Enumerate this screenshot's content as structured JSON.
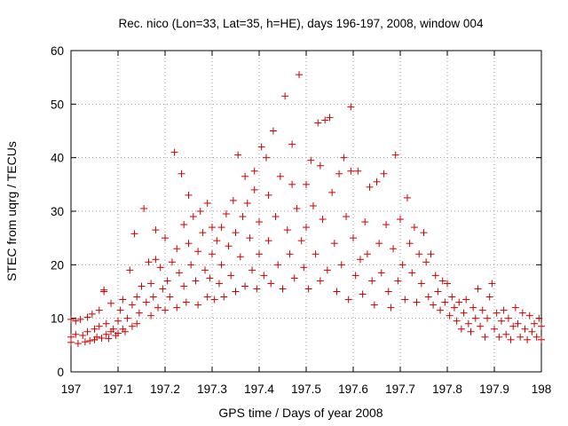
{
  "chart_data": {
    "type": "scatter",
    "title": "Rec. nico (Lon=33, Lat=35, h=HE), days 196-197, 2008, window 004",
    "xlabel": "GPS time / Days of year 2008",
    "ylabel": "STEC from uqrg / TECUs",
    "xlim": [
      197,
      198
    ],
    "ylim": [
      0,
      60
    ],
    "x_ticks": [
      "197",
      "197.1",
      "197.2",
      "197.3",
      "197.4",
      "197.5",
      "197.6",
      "197.7",
      "197.8",
      "197.9",
      "198"
    ],
    "y_ticks": [
      "0",
      "10",
      "20",
      "30",
      "40",
      "50",
      "60"
    ],
    "grid": true,
    "legend": "none",
    "marker": "plus",
    "color": "#cc0000",
    "series": [
      {
        "points": [
          [
            197.0,
            9.8
          ],
          [
            197.0,
            6.5
          ],
          [
            197.0,
            5.5
          ],
          [
            197.01,
            9.5
          ],
          [
            197.01,
            7.0
          ],
          [
            197.015,
            5.3
          ],
          [
            197.02,
            9.8
          ],
          [
            197.025,
            6.8
          ],
          [
            197.03,
            5.6
          ],
          [
            197.035,
            10.2
          ],
          [
            197.035,
            7.5
          ],
          [
            197.04,
            5.8
          ],
          [
            197.045,
            10.8
          ],
          [
            197.05,
            8.0
          ],
          [
            197.05,
            6.0
          ],
          [
            197.055,
            6.5
          ],
          [
            197.06,
            11.5
          ],
          [
            197.06,
            8.5
          ],
          [
            197.065,
            6.3
          ],
          [
            197.07,
            15.3
          ],
          [
            197.07,
            15.0
          ],
          [
            197.075,
            7.0
          ],
          [
            197.075,
            9.0
          ],
          [
            197.08,
            6.2
          ],
          [
            197.085,
            12.8
          ],
          [
            197.085,
            7.5
          ],
          [
            197.09,
            8.0
          ],
          [
            197.095,
            6.8
          ],
          [
            197.1,
            9.5
          ],
          [
            197.1,
            7.2
          ],
          [
            197.105,
            11.5
          ],
          [
            197.11,
            13.5
          ],
          [
            197.11,
            8.0
          ],
          [
            197.115,
            7.5
          ],
          [
            197.12,
            10.0
          ],
          [
            197.125,
            19.0
          ],
          [
            197.13,
            12.5
          ],
          [
            197.13,
            8.5
          ],
          [
            197.135,
            25.8
          ],
          [
            197.14,
            14.0
          ],
          [
            197.14,
            9.0
          ],
          [
            197.145,
            11.0
          ],
          [
            197.15,
            16.0
          ],
          [
            197.155,
            30.5
          ],
          [
            197.16,
            13.0
          ],
          [
            197.165,
            20.5
          ],
          [
            197.17,
            16.5
          ],
          [
            197.17,
            10.5
          ],
          [
            197.175,
            14.0
          ],
          [
            197.18,
            26.5
          ],
          [
            197.18,
            21.0
          ],
          [
            197.185,
            12.0
          ],
          [
            197.19,
            19.5
          ],
          [
            197.195,
            15.5
          ],
          [
            197.2,
            25.0
          ],
          [
            197.2,
            11.5
          ],
          [
            197.205,
            17.0
          ],
          [
            197.21,
            14.0
          ],
          [
            197.215,
            20.5
          ],
          [
            197.22,
            41.0
          ],
          [
            197.225,
            23.0
          ],
          [
            197.225,
            12.0
          ],
          [
            197.23,
            18.5
          ],
          [
            197.235,
            37.0
          ],
          [
            197.24,
            27.5
          ],
          [
            197.24,
            16.0
          ],
          [
            197.245,
            13.0
          ],
          [
            197.25,
            33.0
          ],
          [
            197.25,
            24.0
          ],
          [
            197.255,
            20.0
          ],
          [
            197.26,
            29.0
          ],
          [
            197.265,
            17.0
          ],
          [
            197.27,
            22.5
          ],
          [
            197.27,
            12.5
          ],
          [
            197.275,
            30.0
          ],
          [
            197.28,
            26.0
          ],
          [
            197.285,
            19.0
          ],
          [
            197.29,
            31.5
          ],
          [
            197.29,
            14.0
          ],
          [
            197.295,
            17.5
          ],
          [
            197.3,
            27.0
          ],
          [
            197.3,
            22.0
          ],
          [
            197.305,
            13.5
          ],
          [
            197.31,
            24.5
          ],
          [
            197.315,
            16.5
          ],
          [
            197.32,
            27.0
          ],
          [
            197.32,
            20.0
          ],
          [
            197.325,
            14.0
          ],
          [
            197.33,
            29.5
          ],
          [
            197.335,
            23.5
          ],
          [
            197.34,
            18.0
          ],
          [
            197.345,
            32.0
          ],
          [
            197.35,
            26.0
          ],
          [
            197.35,
            15.0
          ],
          [
            197.355,
            40.5
          ],
          [
            197.36,
            21.5
          ],
          [
            197.365,
            29.0
          ],
          [
            197.37,
            36.5
          ],
          [
            197.37,
            16.0
          ],
          [
            197.375,
            31.5
          ],
          [
            197.38,
            25.0
          ],
          [
            197.385,
            19.0
          ],
          [
            197.39,
            37.5
          ],
          [
            197.39,
            34.0
          ],
          [
            197.395,
            15.5
          ],
          [
            197.4,
            28.0
          ],
          [
            197.4,
            22.0
          ],
          [
            197.405,
            42.0
          ],
          [
            197.41,
            18.0
          ],
          [
            197.415,
            40.0
          ],
          [
            197.42,
            33.0
          ],
          [
            197.42,
            24.5
          ],
          [
            197.425,
            16.5
          ],
          [
            197.43,
            45.0
          ],
          [
            197.435,
            29.0
          ],
          [
            197.44,
            20.0
          ],
          [
            197.445,
            36.5
          ],
          [
            197.45,
            15.5
          ],
          [
            197.455,
            51.5
          ],
          [
            197.46,
            26.5
          ],
          [
            197.465,
            22.0
          ],
          [
            197.47,
            42.5
          ],
          [
            197.47,
            35.0
          ],
          [
            197.475,
            17.5
          ],
          [
            197.48,
            30.5
          ],
          [
            197.485,
            55.5
          ],
          [
            197.49,
            24.5
          ],
          [
            197.495,
            19.5
          ],
          [
            197.5,
            35.0
          ],
          [
            197.5,
            27.0
          ],
          [
            197.505,
            15.5
          ],
          [
            197.51,
            39.5
          ],
          [
            197.515,
            31.0
          ],
          [
            197.52,
            22.0
          ],
          [
            197.525,
            46.5
          ],
          [
            197.53,
            38.5
          ],
          [
            197.53,
            17.0
          ],
          [
            197.535,
            28.5
          ],
          [
            197.54,
            47.0
          ],
          [
            197.545,
            19.0
          ],
          [
            197.55,
            47.5
          ],
          [
            197.555,
            33.5
          ],
          [
            197.56,
            24.0
          ],
          [
            197.565,
            15.0
          ],
          [
            197.57,
            37.0
          ],
          [
            197.575,
            20.0
          ],
          [
            197.58,
            40.0
          ],
          [
            197.585,
            29.0
          ],
          [
            197.59,
            13.5
          ],
          [
            197.595,
            49.5
          ],
          [
            197.595,
            37.5
          ],
          [
            197.6,
            25.0
          ],
          [
            197.605,
            18.0
          ],
          [
            197.61,
            37.5
          ],
          [
            197.615,
            21.0
          ],
          [
            197.62,
            14.5
          ],
          [
            197.625,
            28.0
          ],
          [
            197.63,
            22.0
          ],
          [
            197.635,
            34.5
          ],
          [
            197.64,
            17.0
          ],
          [
            197.645,
            12.5
          ],
          [
            197.65,
            35.5
          ],
          [
            197.655,
            24.0
          ],
          [
            197.66,
            18.5
          ],
          [
            197.665,
            37.0
          ],
          [
            197.67,
            27.5
          ],
          [
            197.675,
            15.0
          ],
          [
            197.68,
            12.0
          ],
          [
            197.685,
            23.0
          ],
          [
            197.69,
            40.5
          ],
          [
            197.695,
            17.0
          ],
          [
            197.7,
            28.5
          ],
          [
            197.705,
            20.0
          ],
          [
            197.71,
            13.5
          ],
          [
            197.715,
            32.5
          ],
          [
            197.72,
            24.0
          ],
          [
            197.725,
            18.5
          ],
          [
            197.73,
            27.0
          ],
          [
            197.735,
            13.0
          ],
          [
            197.74,
            22.0
          ],
          [
            197.745,
            16.5
          ],
          [
            197.75,
            26.0
          ],
          [
            197.755,
            20.5
          ],
          [
            197.76,
            14.0
          ],
          [
            197.765,
            22.0
          ],
          [
            197.77,
            12.5
          ],
          [
            197.775,
            18.0
          ],
          [
            197.78,
            15.0
          ],
          [
            197.785,
            11.5
          ],
          [
            197.79,
            17.0
          ],
          [
            197.795,
            13.0
          ],
          [
            197.8,
            16.5
          ],
          [
            197.805,
            10.5
          ],
          [
            197.81,
            14.0
          ],
          [
            197.815,
            12.0
          ],
          [
            197.82,
            9.5
          ],
          [
            197.825,
            13.0
          ],
          [
            197.83,
            8.0
          ],
          [
            197.835,
            11.0
          ],
          [
            197.84,
            13.5
          ],
          [
            197.845,
            9.0
          ],
          [
            197.85,
            7.5
          ],
          [
            197.855,
            12.0
          ],
          [
            197.86,
            10.0
          ],
          [
            197.865,
            15.5
          ],
          [
            197.87,
            8.5
          ],
          [
            197.875,
            11.5
          ],
          [
            197.88,
            6.5
          ],
          [
            197.885,
            10.0
          ],
          [
            197.89,
            14.0
          ],
          [
            197.895,
            16.5
          ],
          [
            197.9,
            8.0
          ],
          [
            197.905,
            11.0
          ],
          [
            197.91,
            6.5
          ],
          [
            197.915,
            9.5
          ],
          [
            197.92,
            11.5
          ],
          [
            197.925,
            7.0
          ],
          [
            197.93,
            10.0
          ],
          [
            197.935,
            6.0
          ],
          [
            197.94,
            8.5
          ],
          [
            197.945,
            12.0
          ],
          [
            197.95,
            9.0
          ],
          [
            197.955,
            6.5
          ],
          [
            197.96,
            11.0
          ],
          [
            197.965,
            8.0
          ],
          [
            197.97,
            6.0
          ],
          [
            197.975,
            10.5
          ],
          [
            197.98,
            7.5
          ],
          [
            197.985,
            9.0
          ],
          [
            197.99,
            6.5
          ],
          [
            197.995,
            10.0
          ],
          [
            198.0,
            8.5
          ],
          [
            198.0,
            6.0
          ]
        ]
      }
    ]
  }
}
